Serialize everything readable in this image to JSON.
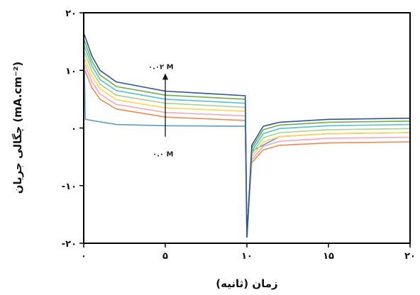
{
  "chart_data": {
    "type": "line",
    "title": "",
    "xlabel": "زمان (ثانیه)",
    "ylabel": "چگالی جریان (mA.cm⁻²)",
    "xlim": [
      0,
      20
    ],
    "ylim": [
      -20,
      20
    ],
    "x_ticks": [
      {
        "value": 0,
        "label": "۰"
      },
      {
        "value": 5,
        "label": "۵"
      },
      {
        "value": 10,
        "label": "۱۰"
      },
      {
        "value": 15,
        "label": "۱۵"
      },
      {
        "value": 20,
        "label": "۲۰"
      }
    ],
    "y_ticks": [
      {
        "value": 20,
        "label": "۲۰"
      },
      {
        "value": 10,
        "label": "۱۰"
      },
      {
        "value": 0,
        "label": "۰"
      },
      {
        "value": -10,
        "label": "-۱۰"
      },
      {
        "value": -20,
        "label": "-۲۰"
      }
    ],
    "grid": false,
    "legend": "none",
    "annotations": {
      "top_label": "۰.۰۲ M",
      "bottom_label": "۰.۰ M",
      "arrow_from": [
        5,
        -1.5
      ],
      "arrow_to": [
        5,
        9.5
      ]
    },
    "series": [
      {
        "color": "#5b9bd5",
        "points": [
          [
            0,
            17
          ],
          [
            0.1,
            1.5
          ],
          [
            2,
            0.6
          ],
          [
            5,
            0.4
          ],
          [
            9.9,
            0.3
          ],
          [
            10,
            -19
          ],
          [
            10.3,
            -4
          ],
          [
            12,
            -1.5
          ],
          [
            15,
            -1.0
          ],
          [
            20,
            -0.8
          ]
        ]
      },
      {
        "color": "#f08a4b",
        "points": [
          [
            0,
            10.5
          ],
          [
            0.5,
            7.0
          ],
          [
            1,
            5.0
          ],
          [
            2,
            3.3
          ],
          [
            5,
            1.9
          ],
          [
            9.9,
            1.3
          ],
          [
            10,
            -19
          ],
          [
            10.3,
            -6
          ],
          [
            11,
            -3.8
          ],
          [
            12,
            -3.0
          ],
          [
            15,
            -2.6
          ],
          [
            20,
            -2.4
          ]
        ]
      },
      {
        "color": "#f4a6c0",
        "points": [
          [
            0,
            11.5
          ],
          [
            0.5,
            8.0
          ],
          [
            1,
            5.9
          ],
          [
            2,
            4.1
          ],
          [
            5,
            2.7
          ],
          [
            9.9,
            2.1
          ],
          [
            10,
            -19
          ],
          [
            10.3,
            -5.5
          ],
          [
            11,
            -3.2
          ],
          [
            12,
            -2.3
          ],
          [
            15,
            -1.8
          ],
          [
            20,
            -1.6
          ]
        ]
      },
      {
        "color": "#ffd54f",
        "points": [
          [
            0,
            12.5
          ],
          [
            0.5,
            9.0
          ],
          [
            1,
            6.8
          ],
          [
            2,
            4.9
          ],
          [
            5,
            3.5
          ],
          [
            9.9,
            2.9
          ],
          [
            10,
            -19
          ],
          [
            10.3,
            -5
          ],
          [
            11,
            -2.4
          ],
          [
            12,
            -1.5
          ],
          [
            15,
            -1.0
          ],
          [
            20,
            -0.8
          ]
        ]
      },
      {
        "color": "#a9d18e",
        "points": [
          [
            0,
            13.5
          ],
          [
            0.5,
            9.9
          ],
          [
            1,
            7.6
          ],
          [
            2,
            5.7
          ],
          [
            5,
            4.3
          ],
          [
            9.9,
            3.6
          ],
          [
            10,
            -19
          ],
          [
            10.3,
            -4.5
          ],
          [
            11,
            -1.7
          ],
          [
            12,
            -0.8
          ],
          [
            15,
            -0.3
          ],
          [
            20,
            -0.1
          ]
        ]
      },
      {
        "color": "#4fc3c7",
        "points": [
          [
            0,
            14.5
          ],
          [
            0.5,
            10.8
          ],
          [
            1,
            8.4
          ],
          [
            2,
            6.5
          ],
          [
            5,
            5.0
          ],
          [
            9.9,
            4.3
          ],
          [
            10,
            -19
          ],
          [
            10.3,
            -4
          ],
          [
            11,
            -1.0
          ],
          [
            12,
            -0.1
          ],
          [
            15,
            0.4
          ],
          [
            20,
            0.6
          ]
        ]
      },
      {
        "color": "#70ad47",
        "points": [
          [
            0,
            15.5
          ],
          [
            0.5,
            11.6
          ],
          [
            1,
            9.2
          ],
          [
            2,
            7.2
          ],
          [
            5,
            5.7
          ],
          [
            9.9,
            5.0
          ],
          [
            10,
            -19
          ],
          [
            10.3,
            -3.5
          ],
          [
            11,
            -0.3
          ],
          [
            12,
            0.5
          ],
          [
            15,
            1.0
          ],
          [
            20,
            1.2
          ]
        ]
      },
      {
        "color": "#2f5597",
        "points": [
          [
            0,
            16.5
          ],
          [
            0.5,
            12.5
          ],
          [
            1,
            10.0
          ],
          [
            2,
            8.0
          ],
          [
            5,
            6.4
          ],
          [
            9.9,
            5.6
          ],
          [
            10,
            -19
          ],
          [
            10.3,
            -3
          ],
          [
            11,
            0.3
          ],
          [
            12,
            1.0
          ],
          [
            15,
            1.5
          ],
          [
            20,
            1.7
          ]
        ]
      }
    ]
  }
}
